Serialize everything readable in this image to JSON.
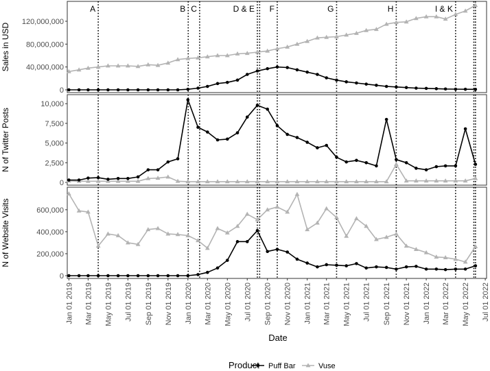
{
  "chart_data": {
    "type": "line",
    "xlabel": "Date",
    "x": [
      "2019-01",
      "2019-02",
      "2019-03",
      "2019-04",
      "2019-05",
      "2019-06",
      "2019-07",
      "2019-08",
      "2019-09",
      "2019-10",
      "2019-11",
      "2019-12",
      "2020-01",
      "2020-02",
      "2020-03",
      "2020-04",
      "2020-05",
      "2020-06",
      "2020-07",
      "2020-08",
      "2020-09",
      "2020-10",
      "2020-11",
      "2020-12",
      "2021-01",
      "2021-02",
      "2021-03",
      "2021-04",
      "2021-05",
      "2021-06",
      "2021-07",
      "2021-08",
      "2021-09",
      "2021-10",
      "2021-11",
      "2021-12",
      "2022-01",
      "2022-02",
      "2022-03",
      "2022-04",
      "2022-05",
      "2022-06"
    ],
    "x_tick_labels": [
      "Jan 01 2019",
      "Mar 01 2019",
      "May 01 2019",
      "Jul 01 2019",
      "Sep 01 2019",
      "Nov 01 2019",
      "Jan 01 2020",
      "Mar 01 2020",
      "May 01 2020",
      "Jul 01 2020",
      "Sep 01 2020",
      "Nov 01 2020",
      "Jan 01 2021",
      "Mar 01 2021",
      "May 01 2021",
      "Jul 01 2021",
      "Sep 01 2021",
      "Nov 01 2021",
      "Jan 01 2022",
      "Mar 01 2022",
      "May 01 2022",
      "Jul 01 2022"
    ],
    "x_tick_dates": [
      "2019-01-01",
      "2019-03-01",
      "2019-05-01",
      "2019-07-01",
      "2019-09-01",
      "2019-11-01",
      "2020-01-01",
      "2020-03-01",
      "2020-05-01",
      "2020-07-01",
      "2020-09-01",
      "2020-11-01",
      "2021-01-01",
      "2021-03-01",
      "2021-05-01",
      "2021-07-01",
      "2021-09-01",
      "2021-11-01",
      "2022-01-01",
      "2022-03-01",
      "2022-05-01",
      "2022-07-01"
    ],
    "xlim": [
      "2018-12-27",
      "2022-07-05"
    ],
    "events": [
      {
        "label": "A",
        "date": "2019-04-01"
      },
      {
        "label": "B",
        "date": "2020-01-02"
      },
      {
        "label": "C",
        "date": "2020-02-06"
      },
      {
        "label": "D & E",
        "date": "2020-08-01"
      },
      {
        "label": "",
        "date": "2020-08-08"
      },
      {
        "label": "F",
        "date": "2020-10-01"
      },
      {
        "label": "G",
        "date": "2021-04-01"
      },
      {
        "label": "H",
        "date": "2021-10-01"
      },
      {
        "label": "I & K",
        "date": "2022-04-01"
      },
      {
        "label": "",
        "date": "2022-05-27"
      },
      {
        "label": "",
        "date": "2022-06-01"
      }
    ],
    "legend": {
      "title": "Product",
      "position": "bottom"
    },
    "series_colors": {
      "Puff Bar": "#000000",
      "Vuse": "#b3b3b3"
    },
    "panels": [
      {
        "ylabel": "Sales in USD",
        "ylim": [
          0,
          150000000
        ],
        "y_ticks": [
          0,
          40000000,
          80000000,
          120000000
        ],
        "y_tick_labels": [
          "0",
          "40,000,000",
          "80,000,000",
          "120,000,000"
        ],
        "series": [
          {
            "name": "Puff Bar",
            "marker": "circle",
            "values": [
              0,
              0,
              0,
              0,
              0,
              0,
              0,
              0,
              0,
              0,
              0,
              0,
              1000000,
              3000000,
              6000000,
              11000000,
              13000000,
              17000000,
              27000000,
              33000000,
              37000000,
              40000000,
              39000000,
              35000000,
              31000000,
              27000000,
              21000000,
              17000000,
              14000000,
              12000000,
              10000000,
              8000000,
              6000000,
              5000000,
              4000000,
              3000000,
              2500000,
              2000000,
              1500000,
              1200000,
              1000000,
              900000
            ]
          },
          {
            "name": "Vuse",
            "marker": "triangle",
            "values": [
              32000000,
              35000000,
              38000000,
              40000000,
              42000000,
              42000000,
              42000000,
              41000000,
              44000000,
              43000000,
              47000000,
              53000000,
              55000000,
              56000000,
              58000000,
              60000000,
              60000000,
              63000000,
              64000000,
              66000000,
              68000000,
              72000000,
              75000000,
              80000000,
              85000000,
              91000000,
              92000000,
              93000000,
              96000000,
              99000000,
              104000000,
              106000000,
              115000000,
              118000000,
              119000000,
              125000000,
              128000000,
              128000000,
              124000000,
              132000000,
              138000000,
              148000000
            ]
          }
        ]
      },
      {
        "ylabel": "N of Twitter Posts",
        "ylim": [
          0,
          10800
        ],
        "y_ticks": [
          0,
          2500,
          5000,
          7500,
          10000
        ],
        "y_tick_labels": [
          "0",
          "2,500",
          "5,000",
          "7,500",
          "10,000"
        ],
        "series": [
          {
            "name": "Puff Bar",
            "marker": "circle",
            "values": [
              300,
              300,
              550,
              600,
              400,
              500,
              500,
              700,
              1600,
              1600,
              2600,
              3000,
              10500,
              7000,
              6400,
              5400,
              5500,
              6300,
              8300,
              9800,
              9300,
              7200,
              6100,
              5700,
              5100,
              4400,
              4700,
              3200,
              2600,
              2800,
              2500,
              2100,
              8000,
              2900,
              2500,
              1800,
              1600,
              2000,
              2100,
              2100,
              6800,
              2300
            ]
          },
          {
            "name": "Vuse",
            "marker": "triangle",
            "values": [
              200,
              150,
              150,
              150,
              150,
              150,
              150,
              150,
              500,
              550,
              700,
              150,
              100,
              100,
              100,
              100,
              100,
              100,
              100,
              100,
              100,
              100,
              100,
              100,
              100,
              100,
              100,
              100,
              100,
              100,
              100,
              100,
              100,
              2300,
              200,
              200,
              200,
              200,
              200,
              200,
              200,
              500
            ]
          }
        ]
      },
      {
        "ylabel": "N of Website Visits",
        "ylim": [
          0,
          780000
        ],
        "y_ticks": [
          0,
          200000,
          400000,
          600000
        ],
        "y_tick_labels": [
          "0",
          "200,000",
          "400,000",
          "600,000"
        ],
        "series": [
          {
            "name": "Puff Bar",
            "marker": "circle",
            "values": [
              0,
              0,
              0,
              0,
              0,
              0,
              0,
              0,
              0,
              0,
              0,
              0,
              0,
              10000,
              30000,
              70000,
              140000,
              310000,
              310000,
              410000,
              220000,
              240000,
              215000,
              150000,
              115000,
              80000,
              100000,
              95000,
              90000,
              110000,
              70000,
              80000,
              75000,
              60000,
              80000,
              85000,
              60000,
              60000,
              55000,
              60000,
              60000,
              90000
            ]
          },
          {
            "name": "Vuse",
            "marker": "triangle",
            "values": [
              745000,
              590000,
              580000,
              270000,
              380000,
              365000,
              300000,
              285000,
              420000,
              430000,
              380000,
              375000,
              365000,
              320000,
              250000,
              430000,
              390000,
              450000,
              560000,
              510000,
              600000,
              625000,
              580000,
              740000,
              420000,
              480000,
              610000,
              530000,
              360000,
              520000,
              450000,
              330000,
              350000,
              380000,
              270000,
              240000,
              210000,
              170000,
              165000,
              150000,
              125000,
              265000
            ]
          }
        ]
      }
    ]
  }
}
